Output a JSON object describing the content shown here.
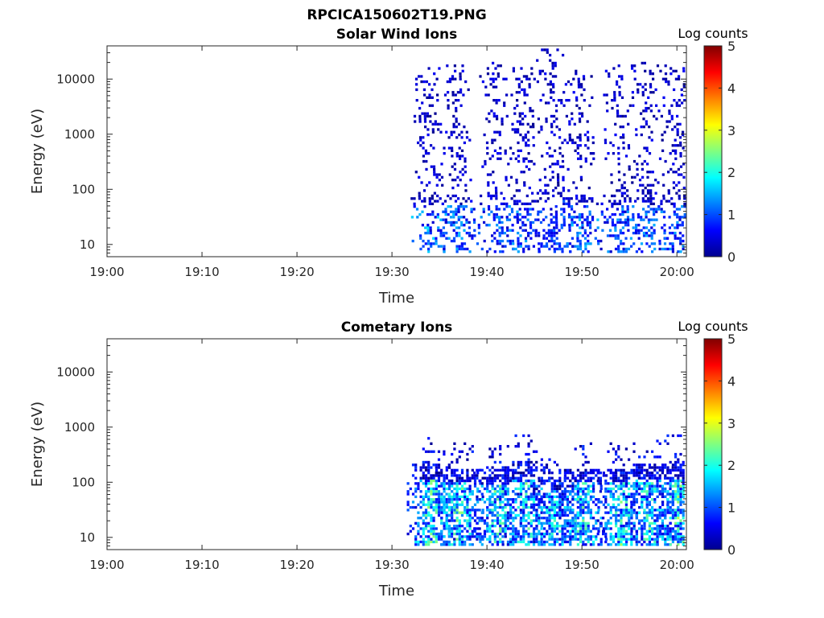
{
  "figure": {
    "title": "RPCICA150602T19.PNG"
  },
  "colorscale": [
    "#00008f",
    "#0000ff",
    "#0080ff",
    "#00ffff",
    "#80ff80",
    "#ffff00",
    "#ff8000",
    "#ff0000",
    "#800000"
  ],
  "chart_data": [
    {
      "type": "heatmap",
      "title": "Solar Wind Ions",
      "xlabel": "Time",
      "ylabel": "Energy (eV)",
      "x_ticks": [
        "19:00",
        "19:10",
        "19:20",
        "19:30",
        "19:40",
        "19:50",
        "20:00"
      ],
      "y_ticks": [
        "10",
        "100",
        "1000",
        "10000"
      ],
      "y_scale": "log",
      "ylim": [
        6,
        40000
      ],
      "xlim": [
        "19:00",
        "20:01"
      ],
      "colorbar": {
        "label": "Log counts",
        "range": [
          0,
          5
        ],
        "ticks": [
          "0",
          "1",
          "2",
          "3",
          "4",
          "5"
        ]
      },
      "bursts": [
        {
          "time": "19:34",
          "low_energy_eV": 7,
          "high_energy_eV": 15000,
          "peak_log_counts": 1.8
        },
        {
          "time": "19:37",
          "low_energy_eV": 7,
          "high_energy_eV": 18000,
          "peak_log_counts": 1.6
        },
        {
          "time": "19:41",
          "low_energy_eV": 7,
          "high_energy_eV": 20000,
          "peak_log_counts": 1.4
        },
        {
          "time": "19:44",
          "low_energy_eV": 7,
          "high_energy_eV": 15000,
          "peak_log_counts": 1.5
        },
        {
          "time": "19:47",
          "low_energy_eV": 7,
          "high_energy_eV": 35000,
          "peak_log_counts": 1.2
        },
        {
          "time": "19:50",
          "low_energy_eV": 7,
          "high_energy_eV": 17000,
          "peak_log_counts": 1.6
        },
        {
          "time": "19:54",
          "low_energy_eV": 7,
          "high_energy_eV": 18000,
          "peak_log_counts": 1.5
        },
        {
          "time": "19:57",
          "low_energy_eV": 7,
          "high_energy_eV": 20000,
          "peak_log_counts": 1.5
        },
        {
          "time": "20:00",
          "low_energy_eV": 7,
          "high_energy_eV": 17000,
          "peak_log_counts": 1.5
        }
      ]
    },
    {
      "type": "heatmap",
      "title": "Cometary Ions",
      "xlabel": "Time",
      "ylabel": "Energy (eV)",
      "x_ticks": [
        "19:00",
        "19:10",
        "19:20",
        "19:30",
        "19:40",
        "19:50",
        "20:00"
      ],
      "y_ticks": [
        "10",
        "100",
        "1000",
        "10000"
      ],
      "y_scale": "log",
      "ylim": [
        6,
        40000
      ],
      "xlim": [
        "19:00",
        "20:01"
      ],
      "colorbar": {
        "label": "Log counts",
        "range": [
          0,
          5
        ],
        "ticks": [
          "0",
          "1",
          "2",
          "3",
          "4",
          "5"
        ]
      },
      "bursts": [
        {
          "time": "19:34",
          "low_energy_eV": 7,
          "high_energy_eV": 600,
          "peak_log_counts": 2.8
        },
        {
          "time": "19:37",
          "low_energy_eV": 7,
          "high_energy_eV": 500,
          "peak_log_counts": 2.8
        },
        {
          "time": "19:41",
          "low_energy_eV": 7,
          "high_energy_eV": 450,
          "peak_log_counts": 2.7
        },
        {
          "time": "19:44",
          "low_energy_eV": 7,
          "high_energy_eV": 700,
          "peak_log_counts": 2.6
        },
        {
          "time": "19:47",
          "low_energy_eV": 7,
          "high_energy_eV": 300,
          "peak_log_counts": 2.4
        },
        {
          "time": "19:50",
          "low_energy_eV": 7,
          "high_energy_eV": 500,
          "peak_log_counts": 2.7
        },
        {
          "time": "19:54",
          "low_energy_eV": 7,
          "high_energy_eV": 500,
          "peak_log_counts": 2.7
        },
        {
          "time": "19:57",
          "low_energy_eV": 7,
          "high_energy_eV": 600,
          "peak_log_counts": 2.6
        },
        {
          "time": "20:00",
          "low_energy_eV": 7,
          "high_energy_eV": 700,
          "peak_log_counts": 2.8
        }
      ]
    }
  ]
}
